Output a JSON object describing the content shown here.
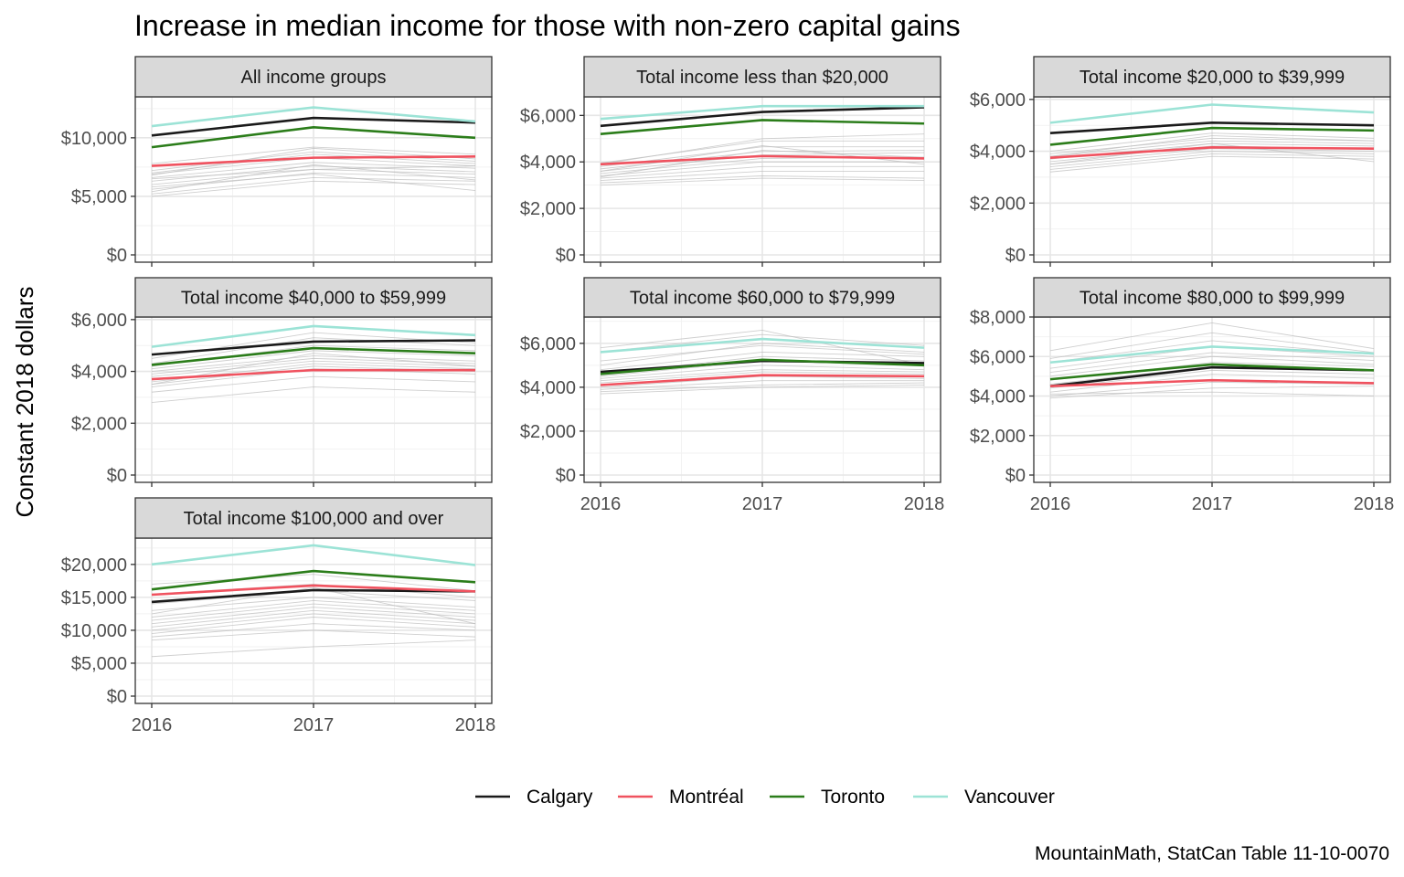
{
  "chart_data": {
    "type": "line",
    "title": "Increase in median income for those with non-zero capital gains",
    "ylabel": "Constant 2018 dollars",
    "xlabel": "",
    "caption": "MountainMath, StatCan Table 11-10-0070",
    "x": [
      "2016",
      "2017",
      "2018"
    ],
    "legend_position": "bottom",
    "grid": true,
    "colors": {
      "Calgary": "#1a1a1a",
      "Montréal": "#f0525f",
      "Toronto": "#2b7d1a",
      "Vancouver": "#9ce3d6",
      "other": "#bbbbbb"
    },
    "legend": [
      {
        "name": "Calgary",
        "color": "#1a1a1a"
      },
      {
        "name": "Montréal",
        "color": "#f0525f"
      },
      {
        "name": "Toronto",
        "color": "#2b7d1a"
      },
      {
        "name": "Vancouver",
        "color": "#9ce3d6"
      }
    ],
    "panels": [
      {
        "title": "All income groups",
        "ylim": [
          0,
          13500
        ],
        "yticks": [
          0,
          5000,
          10000
        ],
        "ytick_labels": [
          "$0",
          "$5,000",
          "$10,000"
        ],
        "series": [
          {
            "name": "Calgary",
            "values": [
              10200,
              11700,
              11300
            ]
          },
          {
            "name": "Montréal",
            "values": [
              7600,
              8300,
              8400
            ]
          },
          {
            "name": "Toronto",
            "values": [
              9200,
              10900,
              10000
            ]
          },
          {
            "name": "Vancouver",
            "values": [
              11000,
              12600,
              11400
            ]
          }
        ],
        "others": [
          [
            7800,
            9200,
            8600
          ],
          [
            7200,
            8800,
            8000
          ],
          [
            6900,
            8300,
            7600
          ],
          [
            6600,
            7900,
            7400
          ],
          [
            6300,
            7600,
            7100
          ],
          [
            6000,
            7300,
            6900
          ],
          [
            5600,
            7000,
            6600
          ],
          [
            5200,
            6600,
            6300
          ],
          [
            5000,
            6300,
            6000
          ],
          [
            7000,
            8600,
            7800
          ],
          [
            6500,
            7300,
            7600
          ],
          [
            5800,
            6900,
            5500
          ],
          [
            6800,
            9100,
            8200
          ],
          [
            5400,
            7700,
            6400
          ]
        ]
      },
      {
        "title": "Total income less than $20,000",
        "ylim": [
          0,
          6800
        ],
        "yticks": [
          0,
          2000,
          4000,
          6000
        ],
        "ytick_labels": [
          "$0",
          "$2,000",
          "$4,000",
          "$6,000"
        ],
        "series": [
          {
            "name": "Calgary",
            "values": [
              5550,
              6150,
              6350
            ]
          },
          {
            "name": "Montréal",
            "values": [
              3900,
              4250,
              4150
            ]
          },
          {
            "name": "Toronto",
            "values": [
              5200,
              5800,
              5650
            ]
          },
          {
            "name": "Vancouver",
            "values": [
              5850,
              6400,
              6400
            ]
          }
        ],
        "others": [
          [
            3950,
            4900,
            4900
          ],
          [
            3800,
            4650,
            4650
          ],
          [
            3700,
            4450,
            4500
          ],
          [
            3600,
            4300,
            4400
          ],
          [
            3500,
            4150,
            4200
          ],
          [
            3400,
            4000,
            4000
          ],
          [
            3300,
            3800,
            3800
          ],
          [
            3200,
            3600,
            3600
          ],
          [
            3100,
            3400,
            3300
          ],
          [
            3000,
            3300,
            3200
          ],
          [
            3600,
            4700,
            3900
          ],
          [
            3350,
            4500,
            4200
          ],
          [
            3900,
            5000,
            5200
          ]
        ]
      },
      {
        "title": "Total income $20,000 to $39,999",
        "ylim": [
          0,
          6100
        ],
        "yticks": [
          0,
          2000,
          4000,
          6000
        ],
        "ytick_labels": [
          "$0",
          "$2,000",
          "$4,000",
          "$6,000"
        ],
        "series": [
          {
            "name": "Calgary",
            "values": [
              4700,
              5100,
              5000
            ]
          },
          {
            "name": "Montréal",
            "values": [
              3750,
              4150,
              4100
            ]
          },
          {
            "name": "Toronto",
            "values": [
              4250,
              4900,
              4800
            ]
          },
          {
            "name": "Vancouver",
            "values": [
              5100,
              5800,
              5500
            ]
          }
        ],
        "others": [
          [
            4000,
            4700,
            4500
          ],
          [
            3900,
            4500,
            4400
          ],
          [
            3800,
            4400,
            4300
          ],
          [
            3700,
            4300,
            4200
          ],
          [
            3600,
            4200,
            4100
          ],
          [
            3500,
            4100,
            4000
          ],
          [
            3400,
            4000,
            3900
          ],
          [
            3300,
            3900,
            3800
          ],
          [
            3200,
            3800,
            3700
          ],
          [
            3500,
            4300,
            3600
          ],
          [
            3800,
            4600,
            4400
          ]
        ]
      },
      {
        "title": "Total income $40,000 to $59,999",
        "ylim": [
          0,
          6100
        ],
        "yticks": [
          0,
          2000,
          4000,
          6000
        ],
        "ytick_labels": [
          "$0",
          "$2,000",
          "$4,000",
          "$6,000"
        ],
        "series": [
          {
            "name": "Calgary",
            "values": [
              4650,
              5150,
              5200
            ]
          },
          {
            "name": "Montréal",
            "values": [
              3700,
              4050,
              4050
            ]
          },
          {
            "name": "Toronto",
            "values": [
              4250,
              4900,
              4700
            ]
          },
          {
            "name": "Vancouver",
            "values": [
              4950,
              5750,
              5400
            ]
          }
        ],
        "others": [
          [
            4500,
            5500,
            5100
          ],
          [
            4300,
            5300,
            5000
          ],
          [
            4200,
            5000,
            4800
          ],
          [
            4100,
            4800,
            4600
          ],
          [
            4000,
            4600,
            4400
          ],
          [
            3900,
            4500,
            4300
          ],
          [
            3800,
            4400,
            4200
          ],
          [
            3600,
            4300,
            4100
          ],
          [
            3500,
            4200,
            4000
          ],
          [
            3400,
            4100,
            3900
          ],
          [
            3200,
            3800,
            3600
          ],
          [
            2800,
            3400,
            3200
          ],
          [
            3500,
            4700,
            4200
          ]
        ]
      },
      {
        "title": "Total income $60,000 to $79,999",
        "ylim": [
          0,
          7200
        ],
        "yticks": [
          0,
          2000,
          4000,
          6000
        ],
        "ytick_labels": [
          "$0",
          "$2,000",
          "$4,000",
          "$6,000"
        ],
        "series": [
          {
            "name": "Calgary",
            "values": [
              4700,
              5200,
              5100
            ]
          },
          {
            "name": "Montréal",
            "values": [
              4100,
              4550,
              4500
            ]
          },
          {
            "name": "Toronto",
            "values": [
              4600,
              5250,
              5000
            ]
          },
          {
            "name": "Vancouver",
            "values": [
              5600,
              6200,
              5800
            ]
          }
        ],
        "others": [
          [
            5800,
            6600,
            5000
          ],
          [
            5600,
            6400,
            5900
          ],
          [
            5000,
            6000,
            5600
          ],
          [
            4800,
            5600,
            5400
          ],
          [
            4600,
            5400,
            5200
          ],
          [
            4500,
            5200,
            5000
          ],
          [
            4400,
            5000,
            4800
          ],
          [
            4300,
            4800,
            4700
          ],
          [
            4200,
            4700,
            4600
          ],
          [
            4000,
            4500,
            4400
          ],
          [
            3900,
            4300,
            4300
          ],
          [
            3800,
            4100,
            4200
          ],
          [
            3700,
            4000,
            4100
          ],
          [
            5200,
            5900,
            5500
          ]
        ]
      },
      {
        "title": "Total income $80,000 to $99,999",
        "ylim": [
          0,
          8000
        ],
        "yticks": [
          0,
          2000,
          4000,
          6000,
          8000
        ],
        "ytick_labels": [
          "$0",
          "$2,000",
          "$4,000",
          "$6,000",
          "$8,000"
        ],
        "series": [
          {
            "name": "Calgary",
            "values": [
              4500,
              5450,
              5300
            ]
          },
          {
            "name": "Montréal",
            "values": [
              4500,
              4800,
              4650
            ]
          },
          {
            "name": "Toronto",
            "values": [
              4850,
              5600,
              5300
            ]
          },
          {
            "name": "Vancouver",
            "values": [
              5700,
              6500,
              6150
            ]
          }
        ],
        "others": [
          [
            6300,
            7700,
            6400
          ],
          [
            5900,
            7200,
            6200
          ],
          [
            5700,
            6800,
            6100
          ],
          [
            5400,
            6500,
            6000
          ],
          [
            5200,
            6200,
            5800
          ],
          [
            5000,
            6000,
            5600
          ],
          [
            4800,
            5700,
            5500
          ],
          [
            4600,
            5500,
            5300
          ],
          [
            4400,
            5300,
            5100
          ],
          [
            4200,
            5100,
            4900
          ],
          [
            4000,
            4700,
            4600
          ],
          [
            3900,
            4400,
            4500
          ],
          [
            4100,
            4200,
            4000
          ]
        ]
      },
      {
        "title": "Total income $100,000 and over",
        "ylim": [
          0,
          24000
        ],
        "yticks": [
          0,
          5000,
          10000,
          15000,
          20000
        ],
        "ytick_labels": [
          "$0",
          "$5,000",
          "$10,000",
          "$15,000",
          "$20,000"
        ],
        "series": [
          {
            "name": "Calgary",
            "values": [
              14300,
              16100,
              15900
            ]
          },
          {
            "name": "Montréal",
            "values": [
              15400,
              16800,
              15900
            ]
          },
          {
            "name": "Toronto",
            "values": [
              16200,
              19000,
              17300
            ]
          },
          {
            "name": "Vancouver",
            "values": [
              20000,
              22900,
              19900
            ]
          }
        ],
        "others": [
          [
            17000,
            18500,
            16000
          ],
          [
            15500,
            17000,
            15000
          ],
          [
            14000,
            16000,
            14500
          ],
          [
            13000,
            15000,
            13500
          ],
          [
            12000,
            14500,
            13000
          ],
          [
            11500,
            14000,
            12500
          ],
          [
            11000,
            13500,
            12000
          ],
          [
            10500,
            13000,
            11500
          ],
          [
            10000,
            12500,
            11000
          ],
          [
            9500,
            12000,
            10500
          ],
          [
            9000,
            11000,
            10000
          ],
          [
            8500,
            10000,
            9000
          ],
          [
            6000,
            7500,
            8500
          ],
          [
            12500,
            16500,
            11000
          ]
        ]
      }
    ]
  }
}
